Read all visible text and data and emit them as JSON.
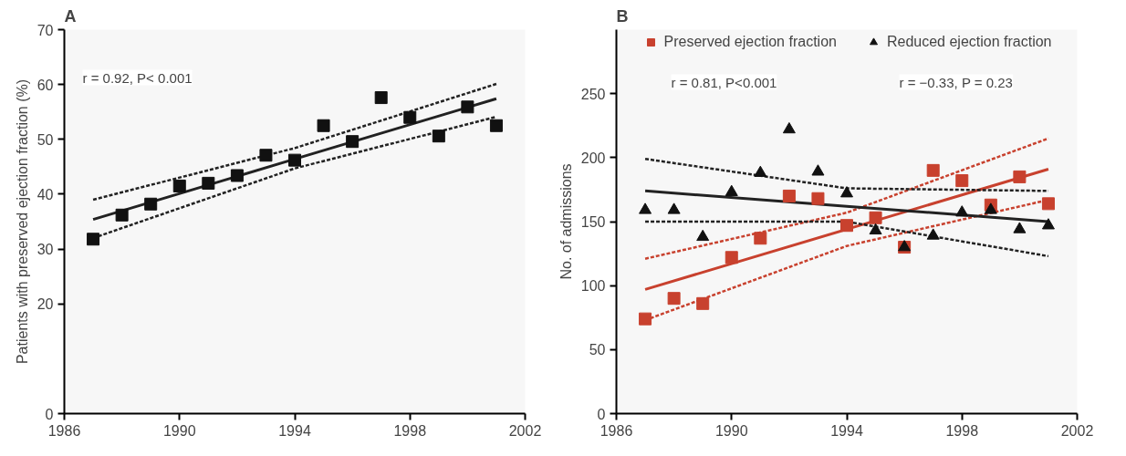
{
  "chart_data": [
    {
      "type": "scatter",
      "title": "A",
      "ylabel": "Patients with preserved ejection fraction (%)",
      "x": [
        1987,
        1988,
        1989,
        1990,
        1991,
        1992,
        1993,
        1994,
        1995,
        1996,
        1997,
        1998,
        1999,
        2000,
        2001
      ],
      "xlim": [
        1986,
        2002
      ],
      "xticks": [
        1986,
        1990,
        1994,
        1998,
        2002
      ],
      "ylim": [
        0,
        70
      ],
      "yticks": [
        0,
        20,
        30,
        40,
        50,
        60,
        70
      ],
      "grid": false,
      "legend": false,
      "annotations": [
        "r = 0.92, P< 0.001"
      ],
      "series": [
        {
          "marker": "square",
          "color": "#111111",
          "values": [
            31.8,
            36.2,
            38.2,
            41.5,
            42.0,
            43.4,
            47.1,
            46.2,
            52.5,
            49.6,
            57.6,
            54.0,
            50.6,
            55.9,
            52.5
          ]
        },
        {
          "type": "line",
          "line_style": "solid",
          "color": "#222222",
          "x": [
            1987,
            1994,
            2001
          ],
          "values": [
            35.4,
            46.4,
            57.4
          ]
        },
        {
          "type": "line",
          "line_style": "dashed",
          "color": "#222222",
          "x": [
            1987,
            1994,
            2001
          ],
          "values": [
            39.0,
            48.4,
            60.1
          ]
        },
        {
          "type": "line",
          "line_style": "dashed",
          "color": "#222222",
          "x": [
            1987,
            1994,
            2001
          ],
          "values": [
            32.0,
            44.7,
            54.1
          ]
        }
      ]
    },
    {
      "type": "scatter",
      "title": "B",
      "ylabel": "No. of admissions",
      "x": [
        1987,
        1988,
        1989,
        1990,
        1991,
        1992,
        1993,
        1994,
        1995,
        1996,
        1997,
        1998,
        1999,
        2000,
        2001
      ],
      "xlim": [
        1986,
        2002
      ],
      "xticks": [
        1986,
        1990,
        1994,
        1998,
        2002
      ],
      "ylim": [
        0,
        300
      ],
      "yticks": [
        0,
        50,
        100,
        150,
        200,
        250
      ],
      "grid": false,
      "legend": "top",
      "annotations": [
        "r = 0.81, P<0.001",
        "r = −0.33, P = 0.23"
      ],
      "series": [
        {
          "name": "Preserved ejection fraction",
          "marker": "square",
          "color": "#c8412e",
          "values": [
            74,
            90,
            86,
            122,
            137,
            170,
            168,
            147,
            153,
            130,
            190,
            182,
            163,
            185,
            164
          ]
        },
        {
          "name": "Reduced ejection fraction",
          "marker": "triangle",
          "color": "#111111",
          "values": [
            159,
            159,
            138,
            173,
            188,
            222,
            189,
            172,
            143,
            130,
            139,
            157,
            159,
            144,
            147
          ]
        },
        {
          "type": "line",
          "line_style": "solid",
          "color": "#c8412e",
          "x": [
            1987,
            1994,
            2001
          ],
          "values": [
            97,
            144,
            191
          ]
        },
        {
          "type": "line",
          "line_style": "dashed",
          "color": "#c8412e",
          "x": [
            1987,
            1994,
            2001
          ],
          "values": [
            121,
            157,
            215
          ]
        },
        {
          "type": "line",
          "line_style": "dashed",
          "color": "#c8412e",
          "x": [
            1987,
            1994,
            2001
          ],
          "values": [
            73,
            131,
            167
          ]
        },
        {
          "type": "line",
          "line_style": "solid",
          "color": "#222222",
          "x": [
            1987,
            1994,
            2001
          ],
          "values": [
            174,
            162,
            150
          ]
        },
        {
          "type": "line",
          "line_style": "dashed",
          "color": "#222222",
          "x": [
            1987,
            1994,
            2001
          ],
          "values": [
            199,
            176,
            174
          ]
        },
        {
          "type": "line",
          "line_style": "dashed",
          "color": "#222222",
          "x": [
            1987,
            1994,
            2001
          ],
          "values": [
            150,
            150,
            123
          ]
        }
      ]
    }
  ]
}
